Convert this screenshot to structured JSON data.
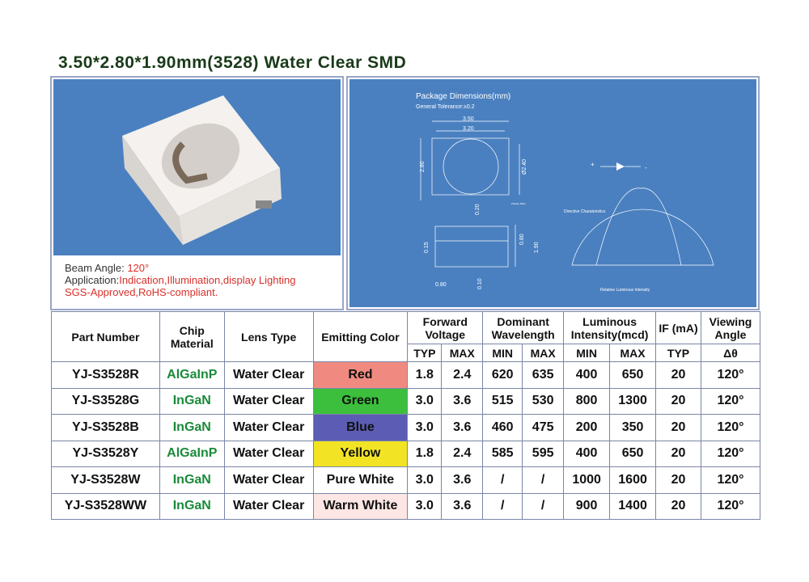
{
  "title": "3.50*2.80*1.90mm(3528) Water Clear SMD",
  "info": {
    "beam_label": "Beam Angle: ",
    "beam_value": "120°",
    "app_label": "Application:",
    "app_value": "Indication,Illumination,display Lighting",
    "cert": "SGS-Approved,RoHS-compliant."
  },
  "diagram": {
    "title": "Package Dimensions(mm)",
    "tolerance": "General Tolerance:±0.2",
    "dims": {
      "d350": "3.50",
      "d320": "3.20",
      "d280": "2.80",
      "d240": "Ø2.40",
      "d020": "0.20",
      "d080a": "0.80",
      "d190": "1.90",
      "d015": "0.15",
      "d080b": "0.80",
      "d010": "0.10"
    },
    "polarity": "Polarity Mark",
    "directive": "Directive Charateristics",
    "rel": "Relative Luminous Intensity",
    "plus": "+",
    "minus": "-"
  },
  "table": {
    "headers": {
      "part": "Part Number",
      "chip": "Chip Material",
      "lens": "Lens Type",
      "color": "Emitting Color",
      "fv": "Forward Voltage",
      "dw": "Dominant Wavelength",
      "li": "Luminous Intensity(mcd)",
      "if": "IF (mA)",
      "va": "Viewing Angle",
      "typ": "TYP",
      "max": "MAX",
      "min": "MIN",
      "delta": "Δθ"
    },
    "rows": [
      {
        "part": "YJ-S3528R",
        "chip": "AlGaInP",
        "lens": "Water Clear",
        "color": "Red",
        "bg": "#f08a80",
        "vt": "1.8",
        "vm": "2.4",
        "wmin": "620",
        "wmax": "635",
        "imin": "400",
        "imax": "650",
        "if": "20",
        "angle": "120°"
      },
      {
        "part": "YJ-S3528G",
        "chip": "InGaN",
        "lens": "Water Clear",
        "color": "Green",
        "bg": "#3cbf3c",
        "vt": "3.0",
        "vm": "3.6",
        "wmin": "515",
        "wmax": "530",
        "imin": "800",
        "imax": "1300",
        "if": "20",
        "angle": "120°"
      },
      {
        "part": "YJ-S3528B",
        "chip": "InGaN",
        "lens": "Water Clear",
        "color": "Blue",
        "bg": "#5c5cb4",
        "vt": "3.0",
        "vm": "3.6",
        "wmin": "460",
        "wmax": "475",
        "imin": "200",
        "imax": "350",
        "if": "20",
        "angle": "120°"
      },
      {
        "part": "YJ-S3528Y",
        "chip": "AlGaInP",
        "lens": "Water Clear",
        "color": "Yellow",
        "bg": "#f2e424",
        "vt": "1.8",
        "vm": "2.4",
        "wmin": "585",
        "wmax": "595",
        "imin": "400",
        "imax": "650",
        "if": "20",
        "angle": "120°"
      },
      {
        "part": "YJ-S3528W",
        "chip": "InGaN",
        "lens": "Water Clear",
        "color": "Pure White",
        "bg": "#ffffff",
        "vt": "3.0",
        "vm": "3.6",
        "wmin": "/",
        "wmax": "/",
        "imin": "1000",
        "imax": "1600",
        "if": "20",
        "angle": "120°"
      },
      {
        "part": "YJ-S3528WW",
        "chip": "InGaN",
        "lens": "Water Clear",
        "color": "Warm White",
        "bg": "#fde6e3",
        "vt": "3.0",
        "vm": "3.6",
        "wmin": "/",
        "wmax": "/",
        "imin": "900",
        "imax": "1400",
        "if": "20",
        "angle": "120°"
      }
    ]
  }
}
